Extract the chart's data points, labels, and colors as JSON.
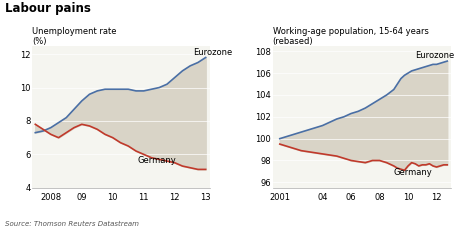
{
  "title": "Labour pains",
  "source": "Source: Thomson Reuters Datastream",
  "left_ylabel1": "Unemployment rate",
  "left_ylabel2": "(%)",
  "left_title": "",
  "left_ylim": [
    4,
    12.5
  ],
  "left_yticks": [
    4,
    6,
    8,
    10,
    12
  ],
  "left_xticks": [
    2007.5,
    2008,
    2009,
    2010,
    2011,
    2012,
    2013
  ],
  "left_xticklabels": [
    "",
    "2008",
    "09",
    "10",
    "11",
    "12",
    "13"
  ],
  "right_ylabel1": "Working-age population, 15-64 years",
  "right_ylabel2": "(rebased)",
  "right_ylim": [
    95.5,
    108.5
  ],
  "right_yticks": [
    96,
    98,
    100,
    102,
    104,
    106,
    108
  ],
  "right_xticks": [
    2001,
    2004,
    2006,
    2008,
    2010,
    2012
  ],
  "right_xticklabels": [
    "2001",
    "04",
    "06",
    "08",
    "10",
    "12"
  ],
  "eurozone_color": "#4a6fa5",
  "germany_color": "#c0392b",
  "fill_color": "#d9d4c7",
  "bg_color": "#f5f5f0",
  "left_eurozone_x": [
    2007.5,
    2007.75,
    2008.0,
    2008.25,
    2008.5,
    2008.75,
    2009.0,
    2009.25,
    2009.5,
    2009.75,
    2010.0,
    2010.25,
    2010.5,
    2010.75,
    2011.0,
    2011.25,
    2011.5,
    2011.75,
    2012.0,
    2012.25,
    2012.5,
    2012.75,
    2013.0
  ],
  "left_eurozone_y": [
    7.3,
    7.4,
    7.6,
    7.9,
    8.2,
    8.7,
    9.2,
    9.6,
    9.8,
    9.9,
    9.9,
    9.9,
    9.9,
    9.8,
    9.8,
    9.9,
    10.0,
    10.2,
    10.6,
    11.0,
    11.3,
    11.5,
    11.8
  ],
  "left_germany_x": [
    2007.5,
    2007.75,
    2008.0,
    2008.25,
    2008.5,
    2008.75,
    2009.0,
    2009.25,
    2009.5,
    2009.75,
    2010.0,
    2010.25,
    2010.5,
    2010.75,
    2011.0,
    2011.25,
    2011.5,
    2011.75,
    2012.0,
    2012.25,
    2012.5,
    2012.75,
    2013.0
  ],
  "left_germany_y": [
    7.8,
    7.5,
    7.2,
    7.0,
    7.3,
    7.6,
    7.8,
    7.7,
    7.5,
    7.2,
    7.0,
    6.7,
    6.5,
    6.2,
    6.0,
    5.8,
    5.7,
    5.6,
    5.5,
    5.3,
    5.2,
    5.1,
    5.1
  ],
  "right_eurozone_x": [
    2001,
    2001.5,
    2002,
    2002.5,
    2003,
    2003.5,
    2004,
    2004.5,
    2005,
    2005.5,
    2006,
    2006.5,
    2007,
    2007.5,
    2008,
    2008.5,
    2009,
    2009.25,
    2009.5,
    2009.75,
    2010,
    2010.25,
    2010.5,
    2010.75,
    2011,
    2011.25,
    2011.5,
    2011.75,
    2012,
    2012.25,
    2012.5,
    2012.75
  ],
  "right_eurozone_y": [
    100.0,
    100.2,
    100.4,
    100.6,
    100.8,
    101.0,
    101.2,
    101.5,
    101.8,
    102.0,
    102.3,
    102.5,
    102.8,
    103.2,
    103.6,
    104.0,
    104.5,
    105.0,
    105.5,
    105.8,
    106.0,
    106.2,
    106.3,
    106.4,
    106.5,
    106.6,
    106.7,
    106.8,
    106.8,
    106.9,
    107.0,
    107.1
  ],
  "right_germany_x": [
    2001,
    2001.5,
    2002,
    2002.5,
    2003,
    2003.5,
    2004,
    2004.5,
    2005,
    2005.5,
    2006,
    2006.5,
    2007,
    2007.5,
    2008,
    2008.5,
    2009,
    2009.25,
    2009.5,
    2009.75,
    2010,
    2010.25,
    2010.5,
    2010.75,
    2011,
    2011.25,
    2011.5,
    2011.75,
    2012,
    2012.25,
    2012.5,
    2012.75
  ],
  "right_germany_y": [
    99.5,
    99.3,
    99.1,
    98.9,
    98.8,
    98.7,
    98.6,
    98.5,
    98.4,
    98.2,
    98.0,
    97.9,
    97.8,
    98.0,
    98.0,
    97.8,
    97.5,
    97.3,
    97.2,
    97.1,
    97.5,
    97.8,
    97.7,
    97.5,
    97.6,
    97.6,
    97.7,
    97.5,
    97.4,
    97.5,
    97.6,
    97.6
  ]
}
